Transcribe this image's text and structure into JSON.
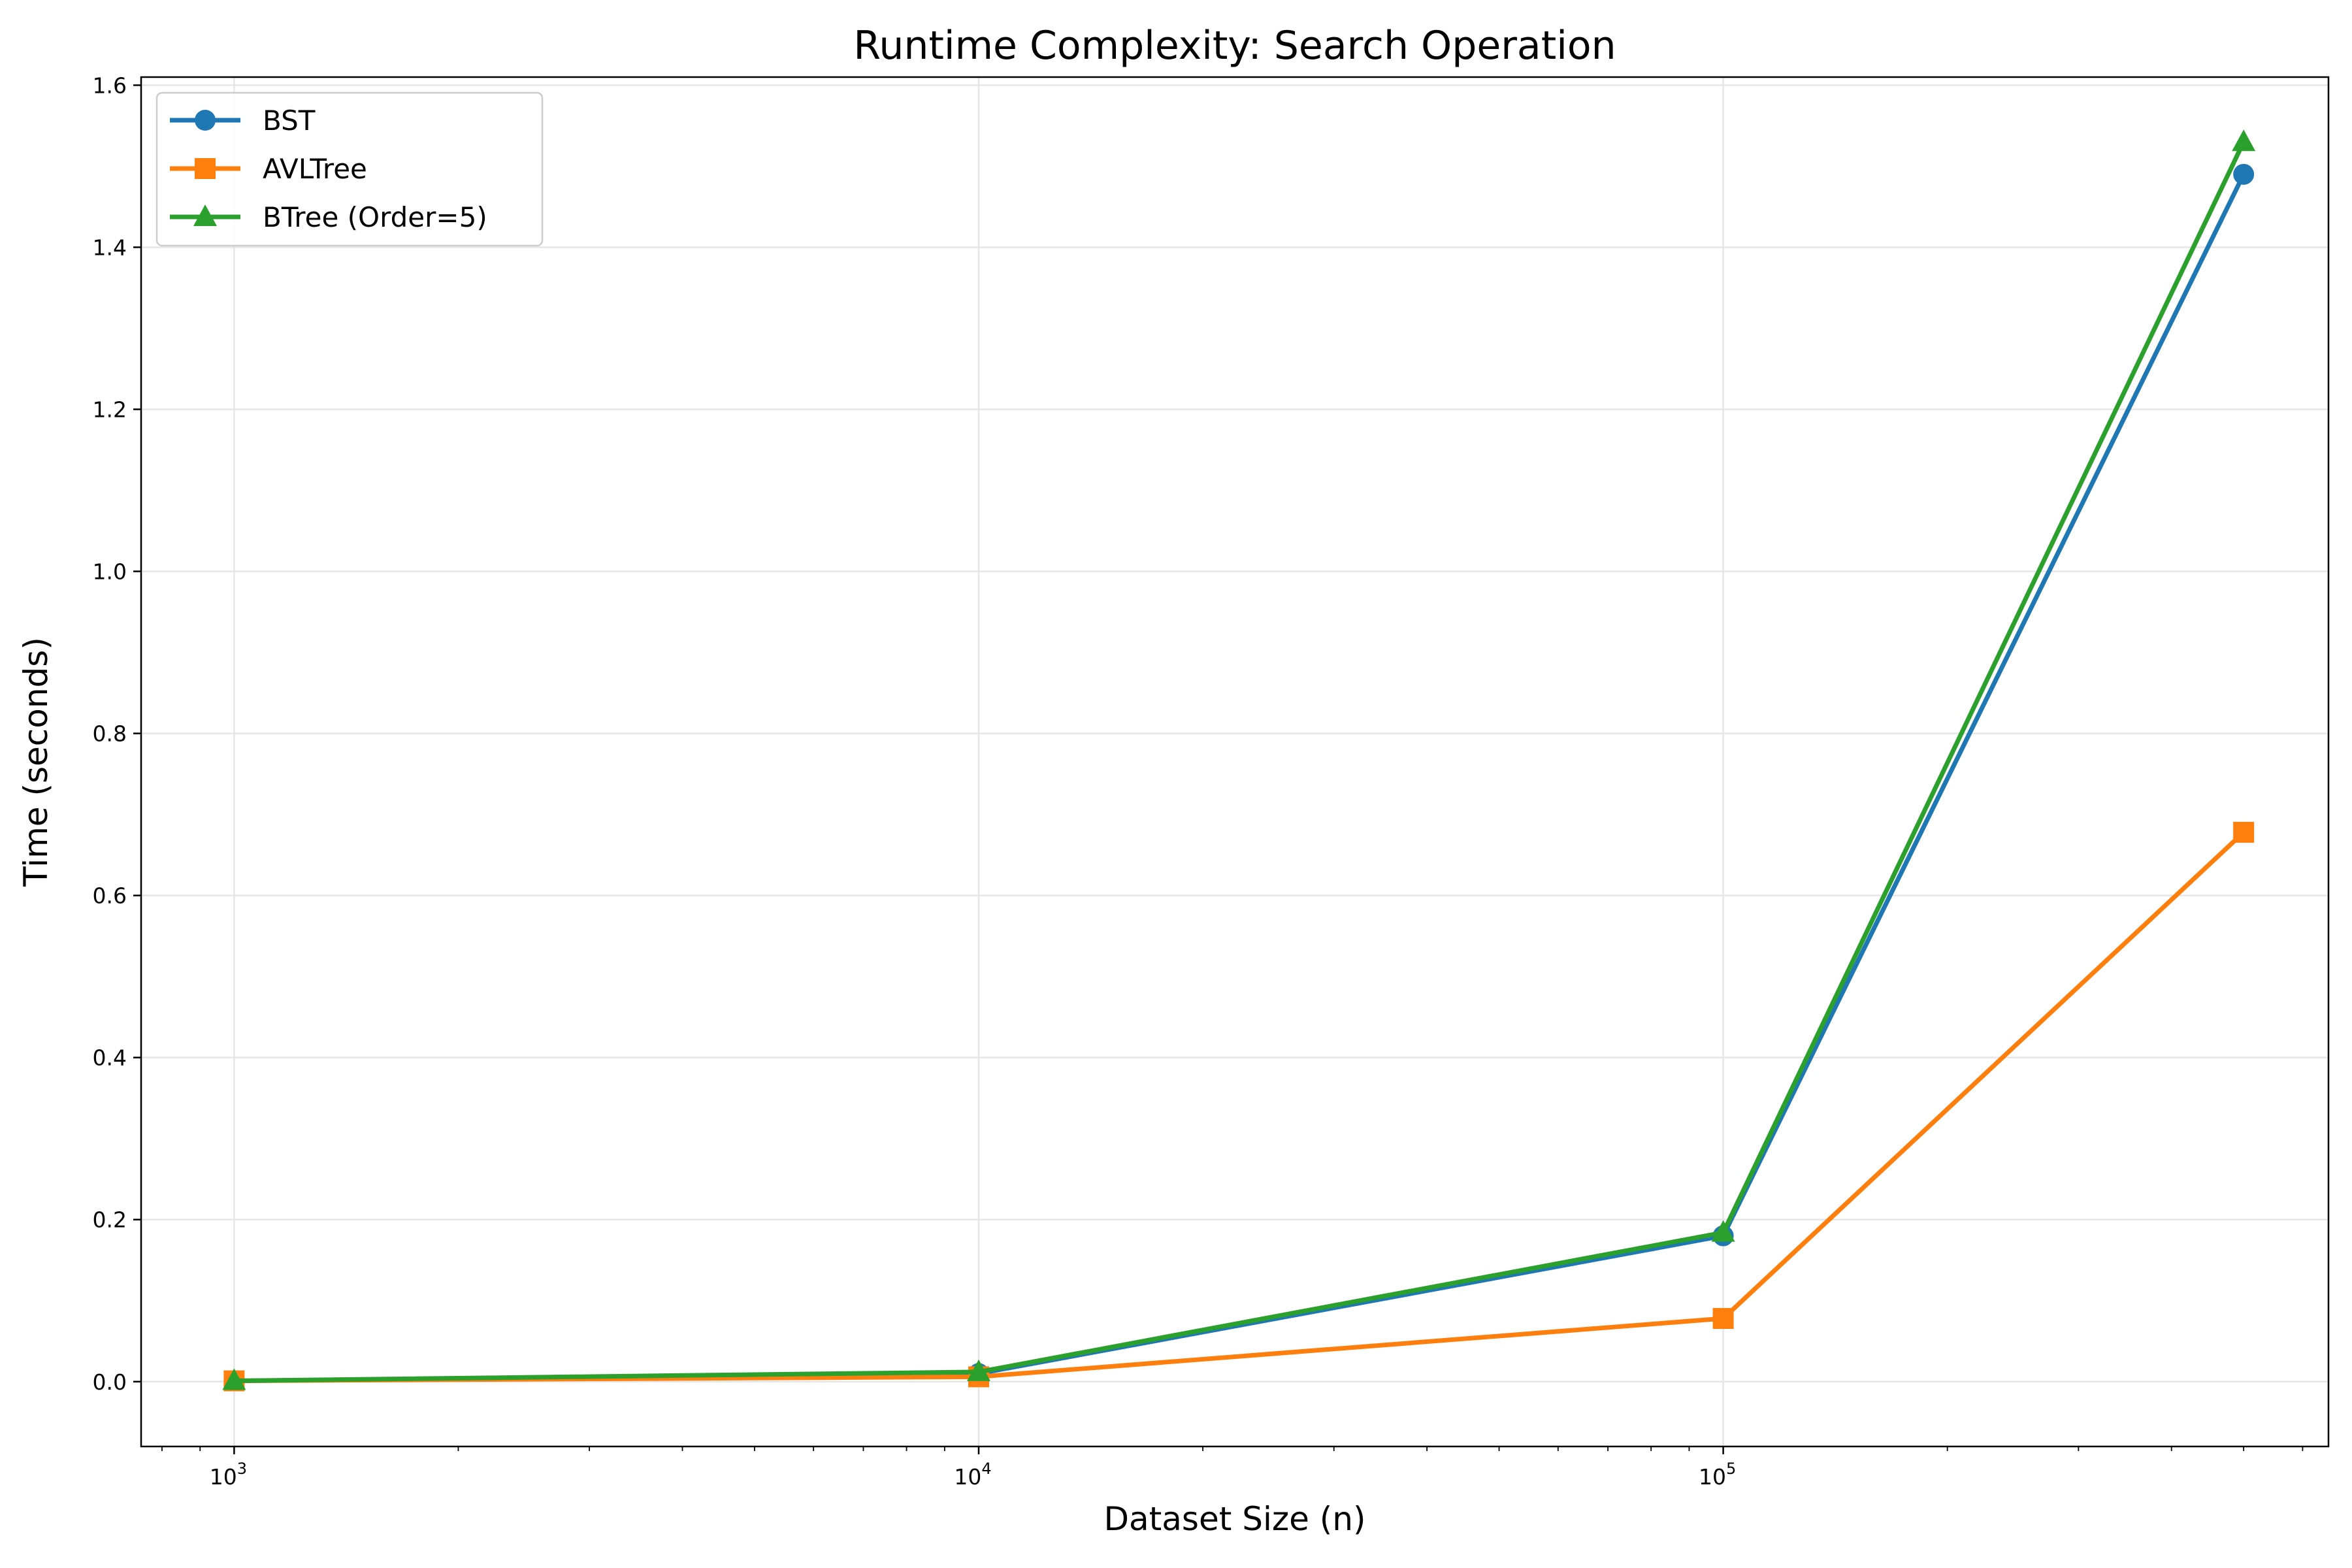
{
  "chart_data": {
    "type": "line",
    "title": "Runtime Complexity: Search Operation",
    "xlabel": "Dataset Size (n)",
    "ylabel": "Time (seconds)",
    "xscale": "log",
    "xlim": [
      750,
      650000
    ],
    "ylim": [
      -0.08,
      1.61
    ],
    "x": [
      1000,
      10000,
      100000,
      500000
    ],
    "x_ticks": [
      {
        "value": 1000,
        "base": "10",
        "exp": "3"
      },
      {
        "value": 10000,
        "base": "10",
        "exp": "4"
      },
      {
        "value": 100000,
        "base": "10",
        "exp": "5"
      }
    ],
    "y_ticks": [
      {
        "value": 0.0,
        "label": "0.0"
      },
      {
        "value": 0.2,
        "label": "0.2"
      },
      {
        "value": 0.4,
        "label": "0.4"
      },
      {
        "value": 0.6,
        "label": "0.6"
      },
      {
        "value": 0.8,
        "label": "0.8"
      },
      {
        "value": 1.0,
        "label": "1.0"
      },
      {
        "value": 1.2,
        "label": "1.2"
      },
      {
        "value": 1.4,
        "label": "1.4"
      },
      {
        "value": 1.6,
        "label": "1.6"
      }
    ],
    "grid": true,
    "legend_position": "top-left",
    "series": [
      {
        "name": "BST",
        "color": "#1f77b4",
        "marker": "circle",
        "values": [
          0.001,
          0.01,
          0.18,
          1.49
        ]
      },
      {
        "name": "AVLTree",
        "color": "#ff7f0e",
        "marker": "square",
        "values": [
          0.001,
          0.006,
          0.078,
          0.678
        ]
      },
      {
        "name": "BTree (Order=5)",
        "color": "#2ca02c",
        "marker": "triangle",
        "values": [
          0.001,
          0.012,
          0.184,
          1.53
        ]
      }
    ]
  }
}
